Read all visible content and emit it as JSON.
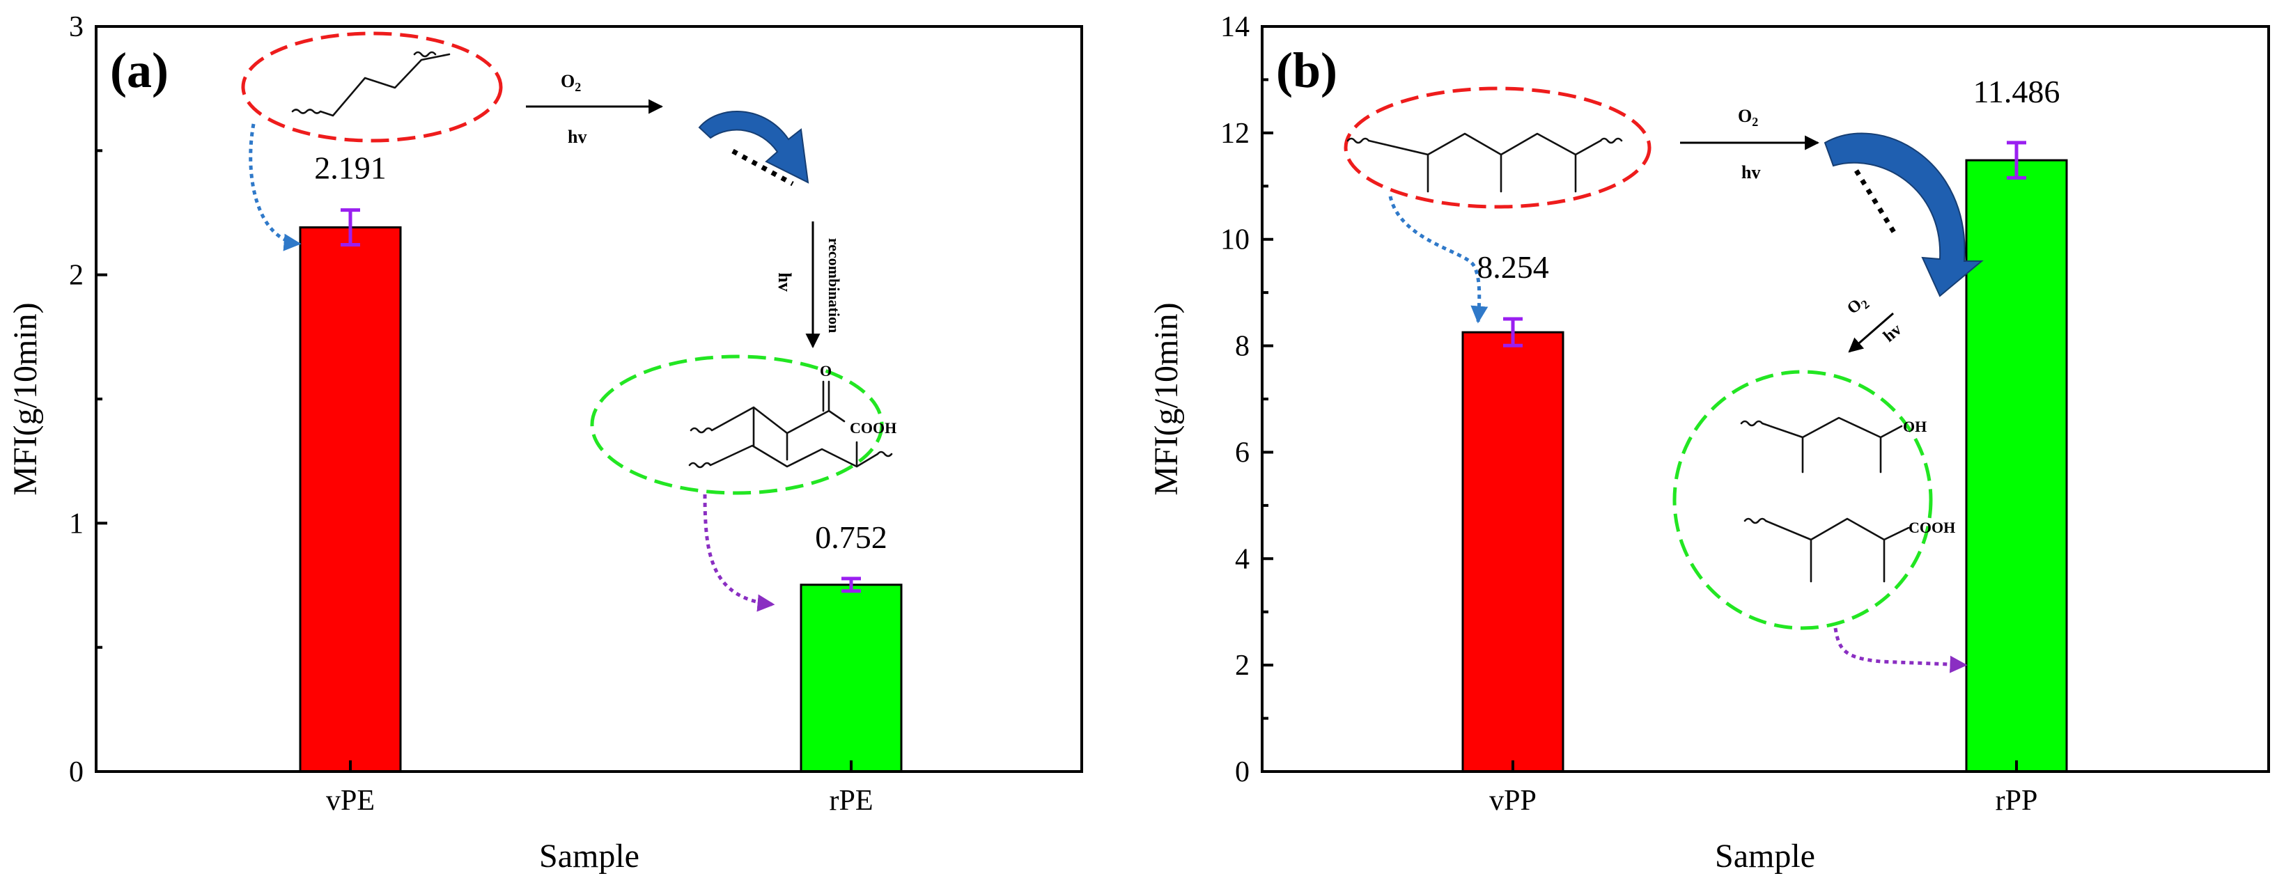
{
  "chart_data": [
    {
      "type": "bar",
      "panel_label": "(a)",
      "categories": [
        "vPE",
        "rPE"
      ],
      "values": [
        2.191,
        0.752
      ],
      "errors": [
        0.07,
        0.025
      ],
      "value_labels": [
        "2.191",
        "0.752"
      ],
      "colors": [
        "#ff0000",
        "#00ff00"
      ],
      "xlabel": "Sample",
      "ylabel": "MFI(g/10min)",
      "ylim": [
        0,
        3
      ],
      "yticks": [
        0,
        1,
        2,
        3
      ],
      "ytick_labels": [
        "0",
        "1",
        "2",
        "3"
      ],
      "annotations": {
        "arrow1_top": "O2",
        "arrow1_bottom": "hv",
        "arrow2_left": "hv",
        "arrow2_right": "recombination",
        "group_label": "COOH",
        "ketone_label": "O"
      }
    },
    {
      "type": "bar",
      "panel_label": "(b)",
      "categories": [
        "vPP",
        "rPP"
      ],
      "values": [
        8.254,
        11.486
      ],
      "errors": [
        0.25,
        0.33
      ],
      "value_labels": [
        "8.254",
        "11.486"
      ],
      "colors": [
        "#ff0000",
        "#00ff00"
      ],
      "xlabel": "Sample",
      "ylabel": "MFI(g/10min)",
      "ylim": [
        0,
        14
      ],
      "yticks": [
        0,
        2,
        4,
        6,
        8,
        10,
        12,
        14
      ],
      "ytick_labels": [
        "0",
        "2",
        "4",
        "6",
        "8",
        "10",
        "12",
        "14"
      ],
      "annotations": {
        "arrow1_top": "O2",
        "arrow1_bottom": "hv",
        "arrow2_top": "O2",
        "arrow2_bottom": "hv",
        "group_label_1": "OH",
        "group_label_2": "COOH"
      }
    }
  ]
}
